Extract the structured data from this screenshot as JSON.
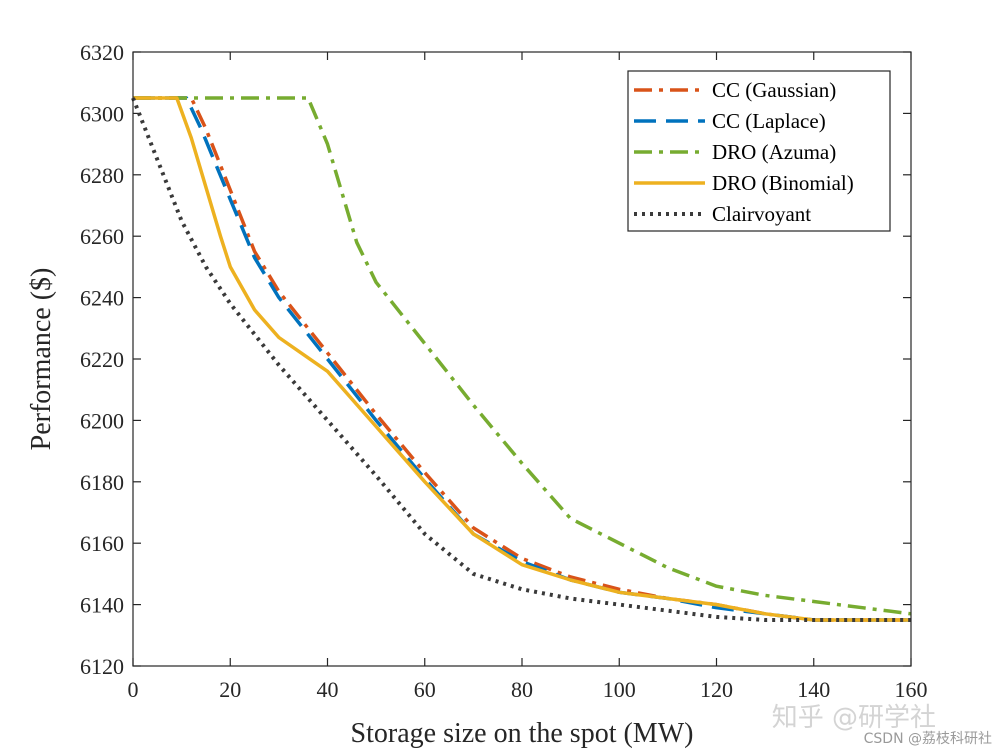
{
  "chart_data": {
    "type": "line",
    "xlabel": "Storage size on the spot (MW)",
    "ylabel": "Performance ($)",
    "xlim": [
      0,
      160
    ],
    "ylim": [
      6120,
      6320
    ],
    "xticks": [
      0,
      20,
      40,
      60,
      80,
      100,
      120,
      140,
      160
    ],
    "yticks": [
      6120,
      6140,
      6160,
      6180,
      6200,
      6220,
      6240,
      6260,
      6280,
      6300,
      6320
    ],
    "grid": false,
    "legend_position": "top-right",
    "series": [
      {
        "name": "CC (Gaussian)",
        "color": "#d95319",
        "style": "dash-dot",
        "x": [
          0,
          12,
          15,
          20,
          25,
          30,
          40,
          50,
          60,
          70,
          80,
          90,
          100,
          110,
          120,
          130,
          140,
          150,
          160
        ],
        "y": [
          6305,
          6305,
          6295,
          6275,
          6255,
          6242,
          6222,
          6202,
          6183,
          6165,
          6155,
          6149,
          6145,
          6142,
          6140,
          6137,
          6135,
          6135,
          6135
        ]
      },
      {
        "name": "CC (Laplace)",
        "color": "#0072bd",
        "style": "dash",
        "x": [
          0,
          11,
          14,
          20,
          25,
          30,
          40,
          50,
          60,
          70,
          80,
          90,
          100,
          110,
          120,
          130,
          140,
          150,
          160
        ],
        "y": [
          6305,
          6305,
          6295,
          6272,
          6253,
          6240,
          6220,
          6200,
          6181,
          6163,
          6154,
          6148,
          6144,
          6142,
          6139,
          6137,
          6135,
          6135,
          6135
        ]
      },
      {
        "name": "DRO (Azuma)",
        "color": "#77ac30",
        "style": "dash-dot",
        "x": [
          0,
          36,
          40,
          46,
          50,
          60,
          70,
          80,
          90,
          100,
          110,
          120,
          130,
          140,
          150,
          160
        ],
        "y": [
          6305,
          6305,
          6290,
          6258,
          6245,
          6225,
          6205,
          6186,
          6168,
          6160,
          6152,
          6146,
          6143,
          6141,
          6139,
          6137
        ]
      },
      {
        "name": "DRO (Binomial)",
        "color": "#edb120",
        "style": "solid",
        "x": [
          0,
          9,
          12,
          18,
          20,
          25,
          30,
          40,
          50,
          60,
          70,
          80,
          90,
          100,
          110,
          120,
          130,
          140,
          150,
          160
        ],
        "y": [
          6305,
          6305,
          6292,
          6260,
          6250,
          6236,
          6227,
          6216,
          6198,
          6180,
          6163,
          6153,
          6148,
          6144,
          6142,
          6140,
          6137,
          6135,
          6135,
          6135
        ]
      },
      {
        "name": "Clairvoyant",
        "color": "#3a3a3a",
        "style": "dot",
        "x": [
          0,
          5,
          10,
          15,
          20,
          30,
          40,
          50,
          60,
          70,
          80,
          90,
          100,
          110,
          120,
          130,
          140,
          150,
          160
        ],
        "y": [
          6305,
          6285,
          6265,
          6250,
          6238,
          6218,
          6200,
          6182,
          6163,
          6150,
          6145,
          6142,
          6140,
          6138,
          6136,
          6135,
          6135,
          6135,
          6135
        ]
      }
    ]
  },
  "watermark": {
    "main": "知乎 @研学社",
    "sub": "CSDN @荔枝科研社"
  }
}
